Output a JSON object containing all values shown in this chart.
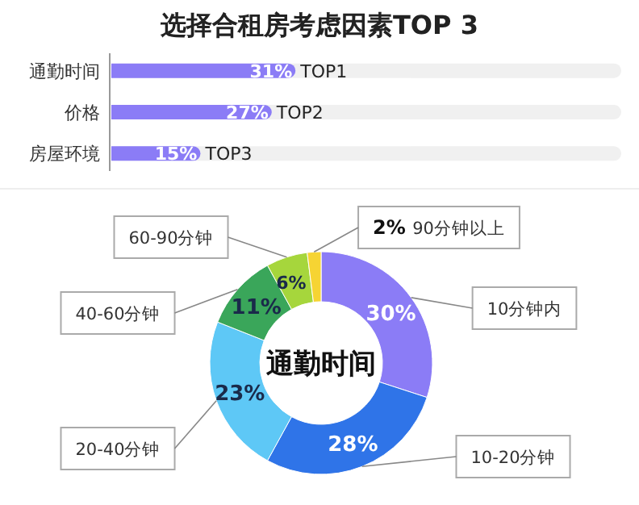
{
  "chart_data": [
    {
      "type": "bar",
      "orientation": "horizontal",
      "title": "选择合租房考虑因素TOP 3",
      "categories": [
        "通勤时间",
        "价格",
        "房屋环境"
      ],
      "values": [
        31,
        27,
        15
      ],
      "color": "#8b7cf6",
      "value_labels": [
        "31%",
        "27%",
        "15%"
      ],
      "annotations": [
        {
          "text": "TOP1",
          "x": 31,
          "y": "通勤时间"
        },
        {
          "text": "TOP2",
          "x": 27,
          "y": "价格"
        },
        {
          "text": "TOP3",
          "x": 15,
          "y": "房屋环境"
        }
      ]
    },
    {
      "type": "donut",
      "categories": [
        "10分钟内",
        "10-20分钟",
        "20-40分钟",
        "40-60分钟",
        "60-90分钟",
        "90分钟以上"
      ],
      "values": [
        30,
        28,
        23,
        11,
        6,
        2
      ],
      "colors": [
        "#8b7cf6",
        "#2f74e8",
        "#5ec8f6",
        "#3aa65a",
        "#a6d63c",
        "#f6d433"
      ],
      "value_labels": [
        "30%",
        "28%",
        "23%",
        "11%",
        "6%",
        "2%"
      ],
      "annotations": [
        "通勤时间"
      ]
    }
  ]
}
